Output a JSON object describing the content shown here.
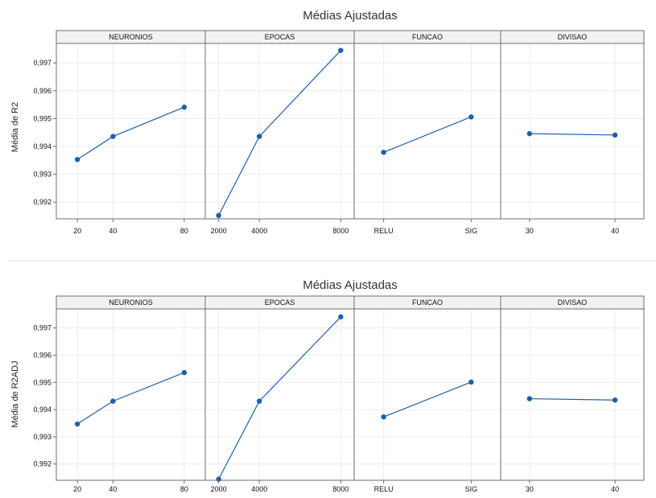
{
  "colors": {
    "series": "#1f5fa8",
    "grid": "#ececec",
    "frame": "#6e6e6e",
    "strip_bg": "#f2f2f2"
  },
  "chart_data": [
    {
      "type": "line",
      "title": "Médias Ajustadas",
      "ylabel": "Média de R2",
      "ylim": [
        0.9914,
        0.9977
      ],
      "yticks": [
        "0,992",
        "0,993",
        "0,994",
        "0,995",
        "0,996",
        "0,997"
      ],
      "ytick_values": [
        0.992,
        0.993,
        0.994,
        0.995,
        0.996,
        0.997
      ],
      "grid": true,
      "panels": [
        {
          "name": "NEURONIOS",
          "categories": [
            "20",
            "40",
            "80"
          ],
          "x": [
            20,
            40,
            80
          ],
          "xlim": [
            10,
            90
          ],
          "values": [
            0.99353,
            0.99436,
            0.99541
          ]
        },
        {
          "name": "EPOCAS",
          "categories": [
            "2000",
            "4000",
            "8000"
          ],
          "x": [
            2000,
            4000,
            8000
          ],
          "xlim": [
            1500,
            8500
          ],
          "values": [
            0.99152,
            0.99436,
            0.99745
          ]
        },
        {
          "name": "FUNCAO",
          "categories": [
            "RELU",
            "SIG"
          ],
          "x": [
            0,
            1
          ],
          "xlim": [
            -0.3,
            1.3
          ],
          "values": [
            0.99379,
            0.99506
          ]
        },
        {
          "name": "DIVISAO",
          "categories": [
            "30",
            "40"
          ],
          "x": [
            30,
            40
          ],
          "xlim": [
            27,
            43
          ],
          "values": [
            0.99446,
            0.99441
          ]
        }
      ]
    },
    {
      "type": "line",
      "title": "Médias Ajustadas",
      "ylabel": "Média de R2ADJ",
      "ylim": [
        0.9914,
        0.9977
      ],
      "yticks": [
        "0,992",
        "0,993",
        "0,994",
        "0,995",
        "0,996",
        "0,997"
      ],
      "ytick_values": [
        0.992,
        0.993,
        0.994,
        0.995,
        0.996,
        0.997
      ],
      "grid": true,
      "panels": [
        {
          "name": "NEURONIOS",
          "categories": [
            "20",
            "40",
            "80"
          ],
          "x": [
            20,
            40,
            80
          ],
          "xlim": [
            10,
            90
          ],
          "values": [
            0.99347,
            0.99431,
            0.99536
          ]
        },
        {
          "name": "EPOCAS",
          "categories": [
            "2000",
            "4000",
            "8000"
          ],
          "x": [
            2000,
            4000,
            8000
          ],
          "xlim": [
            1500,
            8500
          ],
          "values": [
            0.99144,
            0.99431,
            0.99741
          ]
        },
        {
          "name": "FUNCAO",
          "categories": [
            "RELU",
            "SIG"
          ],
          "x": [
            0,
            1
          ],
          "xlim": [
            -0.3,
            1.3
          ],
          "values": [
            0.99373,
            0.99501
          ]
        },
        {
          "name": "DIVISAO",
          "categories": [
            "30",
            "40"
          ],
          "x": [
            30,
            40
          ],
          "xlim": [
            27,
            43
          ],
          "values": [
            0.9944,
            0.99435
          ]
        }
      ]
    }
  ]
}
